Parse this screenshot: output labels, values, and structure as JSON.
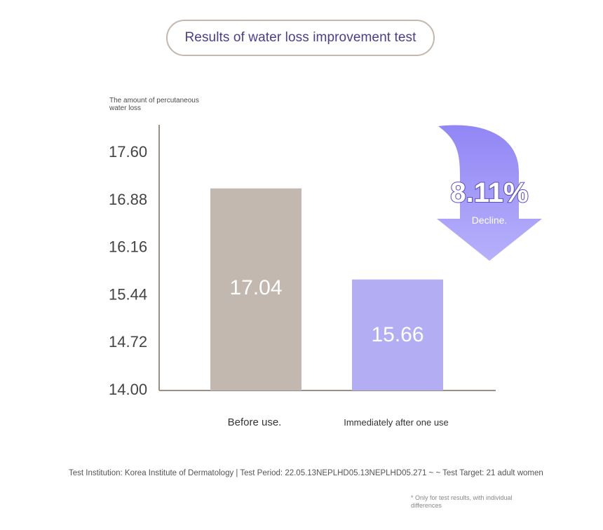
{
  "title": "Results of water loss improvement test",
  "chart_data": {
    "type": "bar",
    "ylabel": "The amount of percutaneous water loss",
    "xlabel": "",
    "categories": [
      "Before use.",
      "Immediately after one use"
    ],
    "values": [
      17.04,
      15.66
    ],
    "value_labels": [
      "17.04",
      "15.66"
    ],
    "yticks": [
      "14.00",
      "14.72",
      "15.44",
      "16.16",
      "16.88",
      "17.60"
    ],
    "ylim": [
      14.0,
      17.6
    ],
    "grid": false,
    "colors": [
      "#c3b8b0",
      "#b3adf4"
    ]
  },
  "callout": {
    "percent": "8.11%",
    "label": "Decline.",
    "color": "#9e93f7"
  },
  "footer": {
    "text": "Test Institution: Korea Institute of Dermatology | Test Period: 22.05.13NEPLHD05.13NEPLHD05.271 ~ ~ Test Target: 21 adult women",
    "note": "* Only for test results, with individual differences"
  }
}
